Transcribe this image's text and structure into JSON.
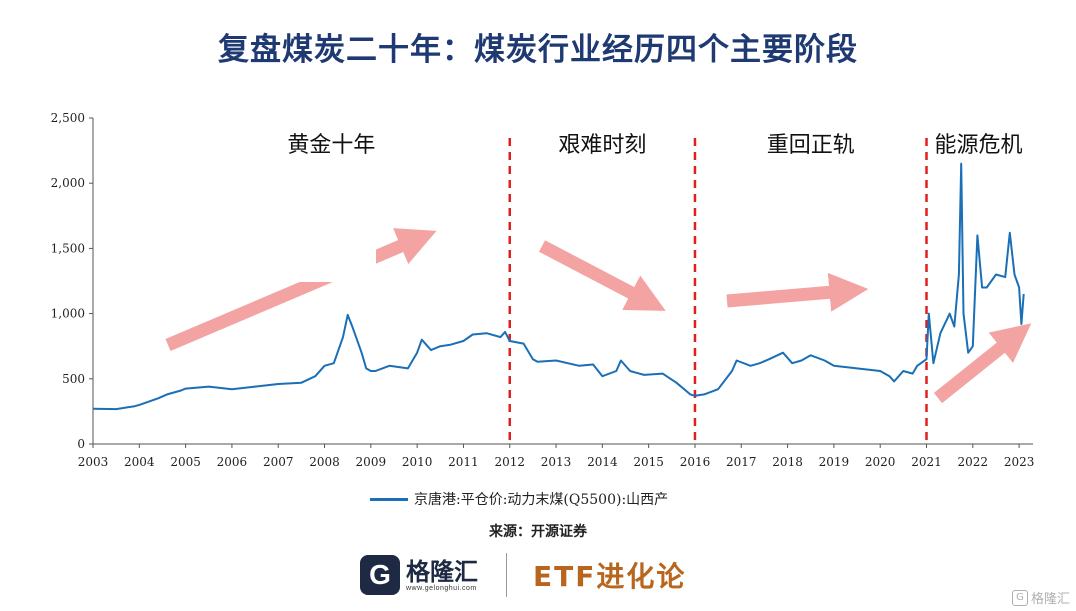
{
  "title": "复盘煤炭二十年：煤炭行业经历四个主要阶段",
  "source": "来源：开源证券",
  "footer": {
    "logo_letter": "G",
    "logo_name": "格隆汇",
    "logo_url": "www.gelonghui.com",
    "brand": "ETF进化论"
  },
  "watermark": "格隆汇",
  "colors": {
    "line": "#1b6fb6",
    "divider": "#e02020",
    "arrow": "#f4a3a3",
    "title": "#1f3a73"
  },
  "chart_data": {
    "type": "line",
    "ylim": [
      0,
      2500
    ],
    "yticks": [
      "0",
      "500",
      "1,000",
      "1,500",
      "2,000",
      "2,500"
    ],
    "ytick_values": [
      0,
      500,
      1000,
      1500,
      2000,
      2500
    ],
    "xlim": [
      2003,
      2023.3
    ],
    "xticks": [
      "2003",
      "2004",
      "2005",
      "2006",
      "2007",
      "2008",
      "2009",
      "2010",
      "2011",
      "2012",
      "2013",
      "2014",
      "2015",
      "2016",
      "2017",
      "2018",
      "2019",
      "2020",
      "2021",
      "2022",
      "2023"
    ],
    "xtick_values": [
      2003,
      2004,
      2005,
      2006,
      2007,
      2008,
      2009,
      2010,
      2011,
      2012,
      2013,
      2014,
      2015,
      2016,
      2017,
      2018,
      2019,
      2020,
      2021,
      2022,
      2023
    ],
    "series": [
      {
        "name": "京唐港:平仓价:动力末煤(Q5500):山西产",
        "x": [
          2003.0,
          2003.5,
          2003.9,
          2004.0,
          2004.4,
          2004.6,
          2004.9,
          2005.0,
          2005.5,
          2006.0,
          2006.5,
          2007.0,
          2007.5,
          2007.8,
          2008.0,
          2008.2,
          2008.4,
          2008.5,
          2008.6,
          2008.8,
          2008.9,
          2009.0,
          2009.1,
          2009.4,
          2009.8,
          2010.0,
          2010.1,
          2010.3,
          2010.5,
          2010.7,
          2011.0,
          2011.2,
          2011.5,
          2011.8,
          2011.9,
          2012.0,
          2012.3,
          2012.5,
          2012.6,
          2013.0,
          2013.5,
          2013.8,
          2014.0,
          2014.3,
          2014.4,
          2014.6,
          2014.9,
          2015.3,
          2015.6,
          2015.9,
          2016.0,
          2016.2,
          2016.5,
          2016.8,
          2016.9,
          2017.2,
          2017.4,
          2017.6,
          2017.9,
          2018.1,
          2018.3,
          2018.5,
          2018.8,
          2019.0,
          2019.5,
          2020.0,
          2020.2,
          2020.3,
          2020.5,
          2020.7,
          2020.8,
          2021.0,
          2021.05,
          2021.15,
          2021.3,
          2021.5,
          2021.6,
          2021.7,
          2021.75,
          2021.8,
          2021.9,
          2022.0,
          2022.1,
          2022.2,
          2022.3,
          2022.5,
          2022.7,
          2022.8,
          2022.9,
          2023.0,
          2023.05,
          2023.1
        ],
        "values": [
          270,
          268,
          290,
          300,
          350,
          380,
          410,
          425,
          440,
          420,
          440,
          460,
          470,
          520,
          600,
          620,
          820,
          990,
          900,
          700,
          580,
          560,
          560,
          600,
          580,
          700,
          800,
          720,
          750,
          760,
          790,
          840,
          850,
          820,
          860,
          790,
          770,
          650,
          630,
          640,
          600,
          610,
          520,
          560,
          640,
          560,
          530,
          540,
          470,
          380,
          370,
          380,
          420,
          560,
          640,
          600,
          620,
          650,
          700,
          620,
          640,
          680,
          640,
          600,
          580,
          560,
          520,
          480,
          560,
          540,
          600,
          650,
          1000,
          620,
          850,
          1000,
          900,
          1300,
          2150,
          1000,
          700,
          750,
          1600,
          1200,
          1200,
          1300,
          1280,
          1620,
          1300,
          1200,
          920,
          1150
        ]
      }
    ],
    "dividers": [
      2012,
      2016,
      2021
    ],
    "phases": [
      "黄金十年",
      "艰难时刻",
      "重回正轨",
      "能源危机"
    ]
  }
}
